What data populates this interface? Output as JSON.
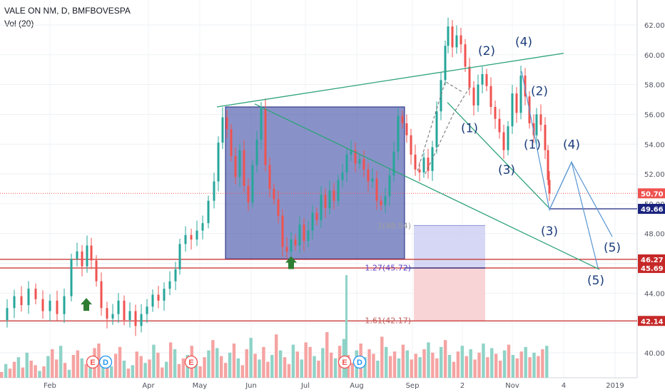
{
  "header": {
    "symbol_line": "VALE ON NM, D, BMFBOVESPA",
    "indicator": "Vol (20)"
  },
  "colors": {
    "up": "#26a69a",
    "down": "#ef5350",
    "vol_up": "#8fd3c7",
    "vol_down": "#f5a3a2",
    "box_fill": "#3b4aa4",
    "trend": "#2ea37b",
    "wave_line": "#5a96d1",
    "h_red": "#c62828",
    "h_blue": "#1a237e",
    "arrow": "#2e7d32"
  },
  "chart_data": {
    "type": "candlestick",
    "title": "VALE ON NM, D, BMFBOVESPA",
    "y_axis": {
      "ticks": [
        40.0,
        42.0,
        44.0,
        46.0,
        48.0,
        50.0,
        52.0,
        54.0,
        56.0,
        58.0,
        60.0,
        62.0
      ],
      "labels": [
        "40.00",
        "42.00",
        "44.00",
        "46.00",
        "48.00",
        "50.00",
        "52.00",
        "54.00",
        "56.00",
        "58.00",
        "60.00",
        "62.00"
      ],
      "range": [
        38.5,
        63.5
      ]
    },
    "x_axis": {
      "labels": [
        "Feb",
        "Apr",
        "May",
        "Jun",
        "Jul",
        "Aug",
        "Sep",
        "2",
        "Nov",
        "4",
        "2019"
      ]
    },
    "price_labels": [
      {
        "value": 50.7,
        "text": "50.70",
        "color": "#ef5350"
      },
      {
        "value": 49.66,
        "text": "49.66",
        "color": "#1a237e"
      },
      {
        "value": 46.27,
        "text": "46.27",
        "color": "#c62828"
      },
      {
        "value": 45.69,
        "text": "45.69",
        "color": "#c62828"
      },
      {
        "value": 42.14,
        "text": "42.14",
        "color": "#c62828"
      }
    ],
    "price_path": [
      [
        0,
        42.2
      ],
      [
        10,
        43.0
      ],
      [
        20,
        43.8
      ],
      [
        30,
        43.2
      ],
      [
        40,
        44.3
      ],
      [
        50,
        43.6
      ],
      [
        60,
        42.8
      ],
      [
        70,
        43.5
      ],
      [
        80,
        42.6
      ],
      [
        90,
        43.8
      ],
      [
        100,
        46.3
      ],
      [
        108,
        46.8
      ],
      [
        115,
        45.8
      ],
      [
        122,
        47.2
      ],
      [
        128,
        46.2
      ],
      [
        135,
        44.8
      ],
      [
        142,
        43.0
      ],
      [
        150,
        42.3
      ],
      [
        158,
        42.6
      ],
      [
        166,
        43.5
      ],
      [
        174,
        42.2
      ],
      [
        182,
        42.8
      ],
      [
        190,
        41.8
      ],
      [
        198,
        42.6
      ],
      [
        206,
        43.1
      ],
      [
        214,
        43.9
      ],
      [
        222,
        43.5
      ],
      [
        230,
        44.3
      ],
      [
        238,
        44.8
      ],
      [
        246,
        45.6
      ],
      [
        252,
        47.3
      ],
      [
        260,
        47.9
      ],
      [
        268,
        47.6
      ],
      [
        276,
        48.2
      ],
      [
        284,
        48.7
      ],
      [
        292,
        50.2
      ],
      [
        300,
        51.5
      ],
      [
        306,
        54.1
      ],
      [
        312,
        55.8
      ],
      [
        318,
        55.0
      ],
      [
        324,
        53.2
      ],
      [
        330,
        51.8
      ],
      [
        336,
        53.6
      ],
      [
        342,
        51.2
      ],
      [
        348,
        50.1
      ],
      [
        354,
        52.6
      ],
      [
        360,
        54.3
      ],
      [
        366,
        56.4
      ],
      [
        372,
        52.6
      ],
      [
        378,
        51.0
      ],
      [
        384,
        50.3
      ],
      [
        390,
        49.2
      ],
      [
        396,
        47.1
      ],
      [
        402,
        46.8
      ],
      [
        408,
        47.6
      ],
      [
        414,
        47.2
      ],
      [
        420,
        48.6
      ],
      [
        426,
        47.5
      ],
      [
        432,
        48.2
      ],
      [
        438,
        49.4
      ],
      [
        444,
        48.9
      ],
      [
        450,
        50.6
      ],
      [
        456,
        49.7
      ],
      [
        462,
        50.9
      ],
      [
        468,
        50.2
      ],
      [
        474,
        51.6
      ],
      [
        480,
        52.1
      ],
      [
        486,
        53.3
      ],
      [
        492,
        53.6
      ],
      [
        498,
        52.7
      ],
      [
        504,
        53.0
      ],
      [
        510,
        52.3
      ],
      [
        516,
        51.5
      ],
      [
        522,
        51.7
      ],
      [
        528,
        50.2
      ],
      [
        534,
        49.9
      ],
      [
        540,
        50.5
      ],
      [
        546,
        51.9
      ],
      [
        552,
        53.5
      ],
      [
        558,
        55.9
      ],
      [
        564,
        55.4
      ],
      [
        570,
        54.6
      ],
      [
        576,
        53.3
      ],
      [
        582,
        52.3
      ],
      [
        588,
        52.1
      ],
      [
        594,
        53.1
      ],
      [
        600,
        52.2
      ],
      [
        606,
        53.8
      ],
      [
        612,
        56.2
      ],
      [
        618,
        58.3
      ],
      [
        624,
        60.6
      ],
      [
        628,
        61.9
      ],
      [
        634,
        60.5
      ],
      [
        640,
        61.3
      ],
      [
        646,
        60.7
      ],
      [
        652,
        59.2
      ],
      [
        658,
        57.8
      ],
      [
        664,
        56.6
      ],
      [
        670,
        58.0
      ],
      [
        676,
        58.7
      ],
      [
        682,
        57.9
      ],
      [
        688,
        56.5
      ],
      [
        694,
        55.7
      ],
      [
        700,
        54.8
      ],
      [
        706,
        53.6
      ],
      [
        712,
        55.2
      ],
      [
        718,
        57.4
      ],
      [
        724,
        56.1
      ],
      [
        730,
        58.6
      ],
      [
        736,
        57.2
      ],
      [
        742,
        55.4
      ],
      [
        748,
        54.6
      ],
      [
        752,
        56.0
      ],
      [
        758,
        55.3
      ],
      [
        764,
        53.6
      ],
      [
        768,
        51.6
      ],
      [
        770,
        50.7
      ]
    ],
    "volume": [
      5,
      12,
      8,
      14,
      18,
      9,
      22,
      15,
      11,
      6,
      10,
      19,
      25,
      16,
      28,
      13,
      7,
      20,
      24,
      17,
      12,
      9,
      26,
      30,
      18,
      14,
      10,
      21,
      27,
      15,
      8,
      11,
      23,
      19,
      13,
      16,
      29,
      22,
      9,
      14,
      31,
      25,
      12,
      17,
      20,
      28,
      15,
      10,
      18,
      24,
      33,
      26,
      19,
      13,
      22,
      30,
      17,
      11,
      25,
      35,
      21,
      16,
      27,
      14,
      20,
      38,
      24,
      18,
      12,
      29,
      23,
      16,
      31,
      27,
      19,
      15,
      26,
      40,
      22,
      17,
      28,
      34,
      20,
      13,
      24,
      30,
      18,
      25,
      21,
      15,
      36,
      27,
      19,
      23,
      17,
      29,
      24,
      16,
      21,
      18,
      25,
      31,
      22,
      17,
      27,
      33,
      20,
      14,
      23,
      28,
      19,
      25,
      16,
      22,
      30,
      18,
      26,
      21,
      15,
      24,
      29,
      20,
      17,
      23,
      27,
      18,
      22,
      19,
      25,
      28
    ],
    "extra_volume_spike": {
      "x": 484,
      "height": 90
    },
    "consolidation_box": {
      "x_from": 316,
      "x_to": 567,
      "top": 56.5,
      "bottom": 46.3
    },
    "trendlines": [
      {
        "x1": 304,
        "y1": 56.5,
        "x2": 790,
        "y2": 60.1
      },
      {
        "x1": 357,
        "y1": 56.7,
        "x2": 840,
        "y2": 45.6
      },
      {
        "x1": 627,
        "y1": 56.8,
        "x2": 770,
        "y2": 49.7
      }
    ],
    "horizontal_lines": [
      {
        "value": 46.27,
        "color": "#c62828",
        "from": 0
      },
      {
        "value": 45.69,
        "color": "#c62828",
        "from": 0
      },
      {
        "value": 42.14,
        "color": "#c62828",
        "from": 0
      },
      {
        "value": 49.66,
        "color": "#1a237e",
        "from": 770
      },
      {
        "value": 45.69,
        "color": "#1a237e",
        "from": 567,
        "to": 680
      }
    ],
    "fib_levels": [
      {
        "label": "1(48.54)",
        "value": 48.54,
        "color": "#9e9e9e"
      },
      {
        "label": "1.27(45.72)",
        "value": 45.72,
        "color": "#5b3fc4"
      },
      {
        "label": "1.61(42.17)",
        "value": 42.17,
        "color": "#c0605e"
      }
    ],
    "fib_zone": {
      "x_from": 580,
      "x_to": 680,
      "top": 48.54,
      "mid": 45.72,
      "bottom": 42.17
    },
    "elliott_labels": [
      {
        "text": "(1)",
        "x": 658,
        "y": 54.8
      },
      {
        "text": "(2)",
        "x": 682,
        "y": 60.0
      },
      {
        "text": "(3)",
        "x": 710,
        "y": 52.0
      },
      {
        "text": "(4)",
        "x": 734,
        "y": 60.6
      },
      {
        "text": "(2)",
        "x": 756,
        "y": 57.3
      },
      {
        "text": "(1)",
        "x": 746,
        "y": 53.7
      },
      {
        "text": "(4)",
        "x": 801,
        "y": 53.7
      },
      {
        "text": "(3)",
        "x": 770,
        "y": 47.9
      },
      {
        "text": "(5)",
        "x": 858,
        "y": 46.8
      },
      {
        "text": "(5)",
        "x": 835,
        "y": 44.6
      }
    ],
    "projection_path": [
      [
        731,
        58.9
      ],
      [
        770,
        49.6
      ],
      [
        801,
        52.8
      ],
      [
        838,
        45.7
      ]
    ],
    "projection_path2": [
      [
        770,
        49.6
      ],
      [
        801,
        52.8
      ],
      [
        858,
        47.8
      ]
    ],
    "wave_dashes": [
      [
        [
          585,
          52.2
        ],
        [
          624,
          58.2
        ],
        [
          648,
          57.5
        ]
      ],
      [
        [
          596,
          52.0
        ],
        [
          636,
          56.1
        ],
        [
          658,
          57.8
        ]
      ]
    ],
    "event_markers": [
      {
        "type": "E",
        "x": 130
      },
      {
        "type": "D",
        "x": 148
      },
      {
        "type": "E",
        "x": 268
      },
      {
        "type": "E",
        "x": 483
      },
      {
        "type": "D",
        "x": 504
      }
    ],
    "arrows": [
      {
        "x": 121,
        "value": 43.2
      },
      {
        "x": 408,
        "value": 46.0
      }
    ]
  }
}
